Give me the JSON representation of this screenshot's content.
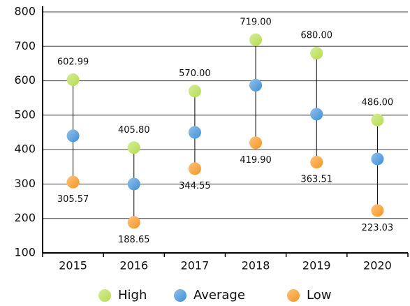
{
  "chart_data": {
    "type": "highlow",
    "categories": [
      "2015",
      "2016",
      "2017",
      "2018",
      "2019",
      "2020"
    ],
    "series": [
      {
        "name": "High",
        "color": "#b5dc4c",
        "values": [
          602.99,
          405.8,
          570,
          719,
          680,
          486
        ],
        "value_labels": [
          "602.99",
          "405.80",
          "570.00",
          "719.00",
          "680.00",
          "486.00"
        ]
      },
      {
        "name": "Average",
        "color": "#3d8fd8",
        "values": [
          440,
          300,
          450,
          587,
          503,
          373
        ]
      },
      {
        "name": "Low",
        "color": "#f7941d",
        "values": [
          305.57,
          188.65,
          344.55,
          419.9,
          363.51,
          223.03
        ],
        "value_labels": [
          "305.57",
          "188.65",
          "344.55",
          "419.90",
          "363.51",
          "223.03"
        ]
      }
    ],
    "ylim": [
      100,
      800
    ],
    "yticks": [
      100,
      200,
      300,
      400,
      500,
      600,
      700,
      800
    ],
    "grid": true
  }
}
